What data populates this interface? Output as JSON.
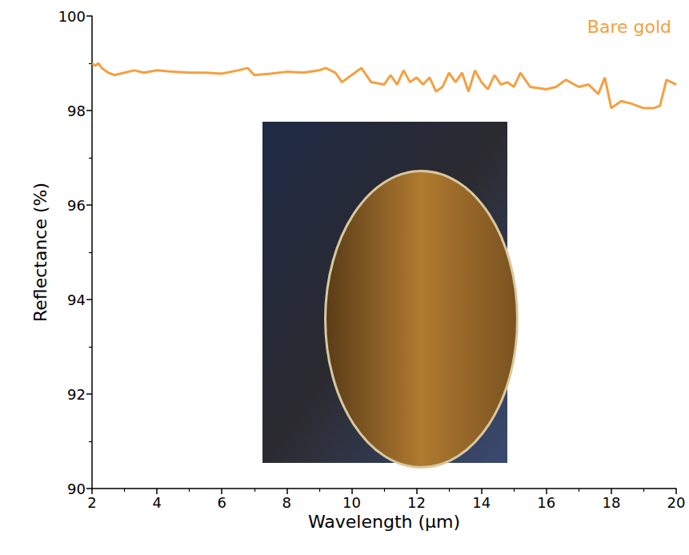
{
  "chart_data": {
    "type": "line",
    "x_label": "Wavelength (µm)",
    "y_label": "Reflectance (%)",
    "xlim": [
      2,
      20
    ],
    "xticks": [
      2,
      4,
      6,
      8,
      10,
      12,
      14,
      16,
      18,
      20
    ],
    "ylim": [
      90,
      100
    ],
    "yticks": [
      90,
      92,
      94,
      96,
      98,
      100
    ],
    "grid": false,
    "annotations": [
      {
        "text": "Bare gold",
        "color": "#f4a040"
      }
    ],
    "series": [
      {
        "name": "Bare gold",
        "color": "#f4a040",
        "x": [
          2.0,
          2.1,
          2.2,
          2.3,
          2.5,
          2.7,
          3.0,
          3.3,
          3.6,
          4.0,
          4.5,
          5.0,
          5.5,
          6.0,
          6.5,
          6.8,
          7.0,
          7.5,
          8.0,
          8.5,
          9.0,
          9.2,
          9.5,
          9.7,
          10.0,
          10.3,
          10.6,
          11.0,
          11.2,
          11.4,
          11.6,
          11.8,
          12.0,
          12.2,
          12.4,
          12.6,
          12.8,
          13.0,
          13.2,
          13.4,
          13.6,
          13.8,
          14.0,
          14.2,
          14.4,
          14.6,
          14.8,
          15.0,
          15.2,
          15.5,
          16.0,
          16.3,
          16.6,
          17.0,
          17.3,
          17.6,
          17.8,
          18.0,
          18.3,
          18.6,
          19.0,
          19.3,
          19.5,
          19.7,
          20.0
        ],
        "values": [
          99.0,
          98.95,
          99.0,
          98.9,
          98.8,
          98.75,
          98.8,
          98.85,
          98.8,
          98.85,
          98.82,
          98.8,
          98.8,
          98.78,
          98.85,
          98.9,
          98.75,
          98.78,
          98.82,
          98.8,
          98.85,
          98.9,
          98.8,
          98.6,
          98.75,
          98.9,
          98.6,
          98.55,
          98.75,
          98.55,
          98.85,
          98.6,
          98.7,
          98.55,
          98.7,
          98.4,
          98.5,
          98.8,
          98.6,
          98.8,
          98.4,
          98.85,
          98.6,
          98.45,
          98.75,
          98.55,
          98.6,
          98.5,
          98.8,
          98.5,
          98.45,
          98.5,
          98.65,
          98.5,
          98.55,
          98.35,
          98.7,
          98.05,
          98.2,
          98.15,
          98.05,
          98.05,
          98.1,
          98.65,
          98.55
        ]
      }
    ]
  }
}
